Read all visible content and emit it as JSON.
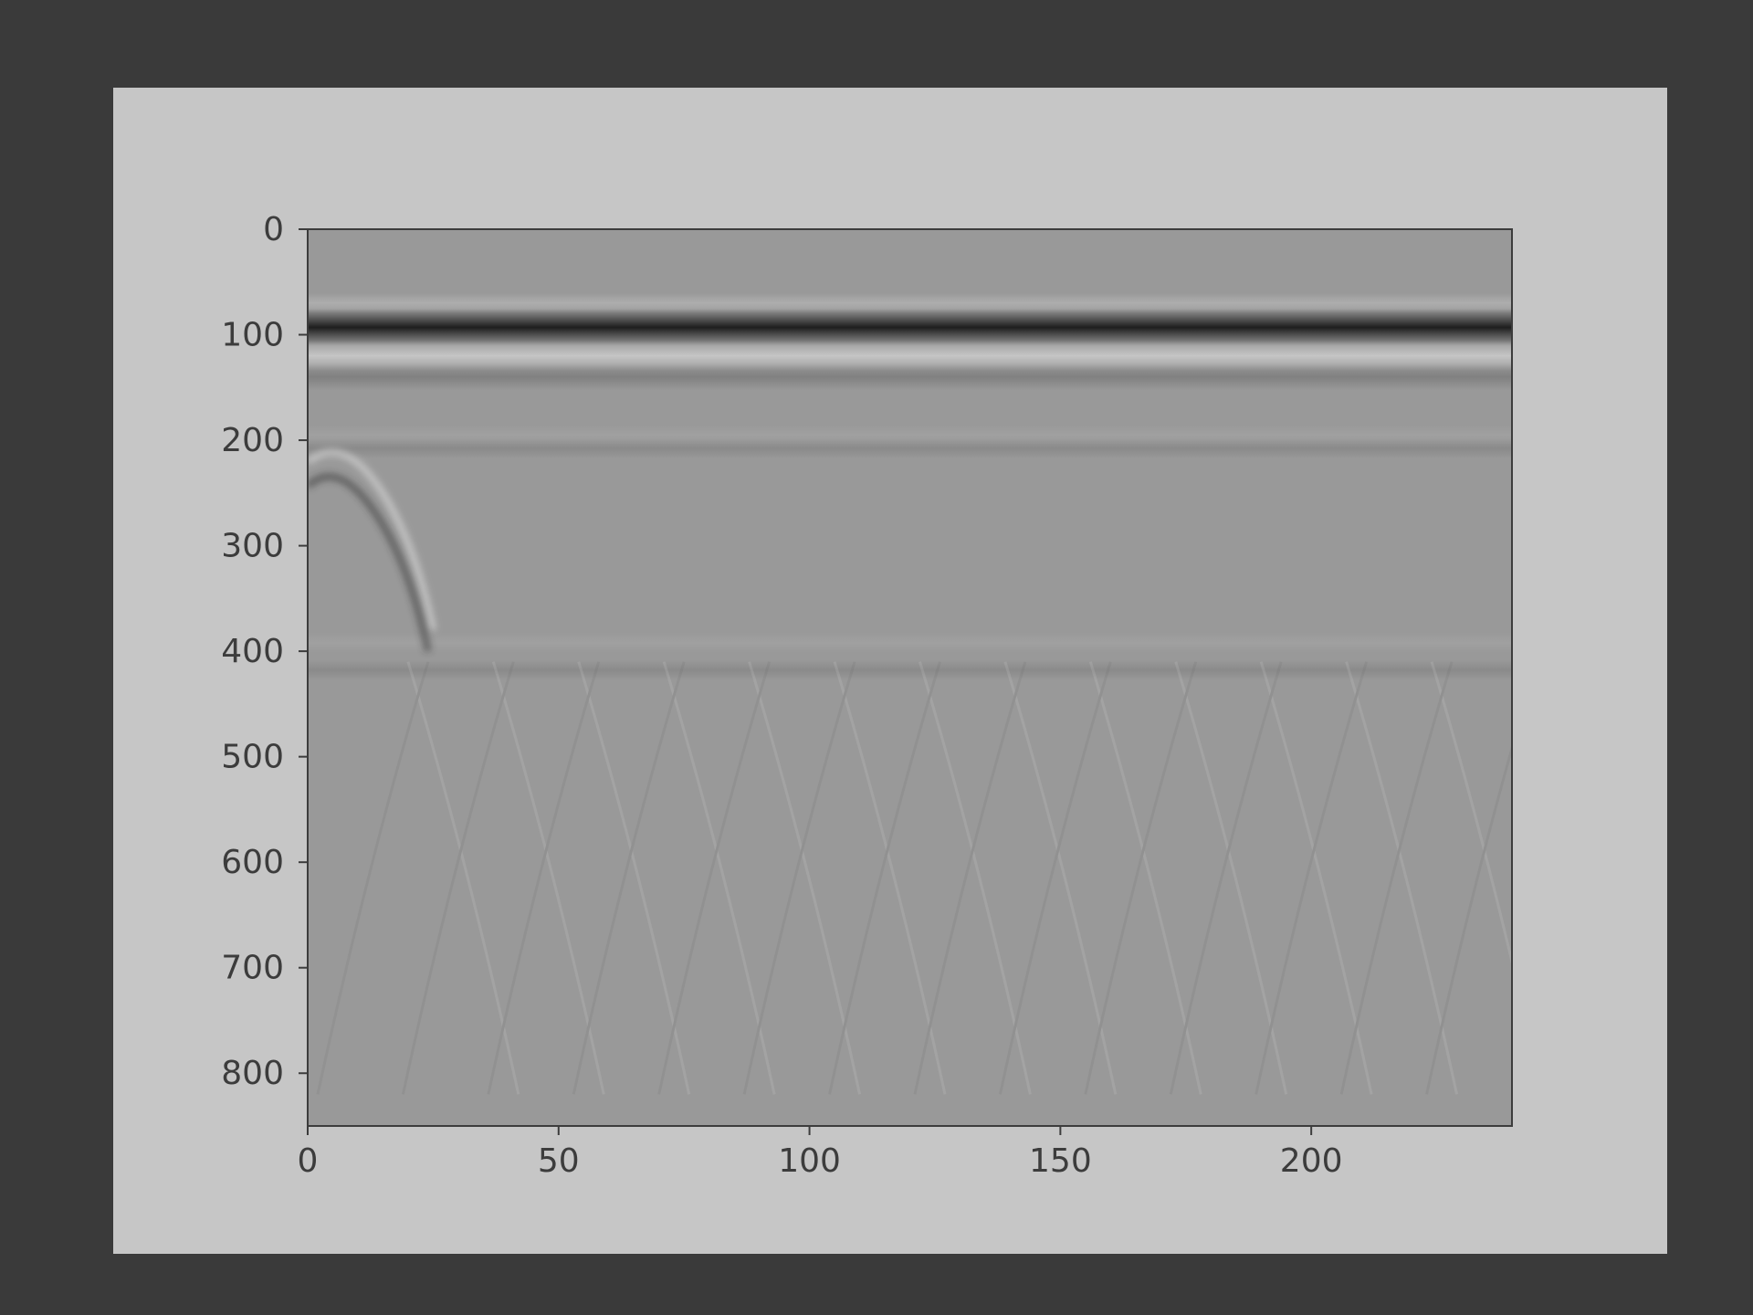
{
  "colors": {
    "screen_background": "#3a3a3a",
    "figure_background": "#c6c6c6",
    "axes_color": "#3c3c3c",
    "image_base_gray": "#999999"
  },
  "chart_data": {
    "type": "heatmap",
    "title": "",
    "xlabel": "",
    "ylabel": "",
    "colormap": "gray",
    "xlim": [
      0,
      240
    ],
    "ylim": [
      850,
      0
    ],
    "y_inverted": true,
    "grid": false,
    "x_ticks": [
      0,
      50,
      100,
      150,
      200
    ],
    "y_ticks": [
      0,
      100,
      200,
      300,
      400,
      500,
      600,
      700,
      800
    ],
    "x_tick_labels": [
      "0",
      "50",
      "100",
      "150",
      "200"
    ],
    "y_tick_labels": [
      "0",
      "100",
      "200",
      "300",
      "400",
      "500",
      "600",
      "700",
      "800"
    ],
    "horizontal_bands": [
      {
        "y_center": 70,
        "y_half_width": 6,
        "tone": "light",
        "intensity": 0.35
      },
      {
        "y_center": 93,
        "y_half_width": 11,
        "tone": "dark",
        "intensity": 1.0
      },
      {
        "y_center": 120,
        "y_half_width": 9,
        "tone": "light",
        "intensity": 0.75
      },
      {
        "y_center": 140,
        "y_half_width": 8,
        "tone": "dark",
        "intensity": 0.2
      },
      {
        "y_center": 195,
        "y_half_width": 6,
        "tone": "light",
        "intensity": 0.12
      },
      {
        "y_center": 208,
        "y_half_width": 6,
        "tone": "dark",
        "intensity": 0.12
      },
      {
        "y_center": 392,
        "y_half_width": 6,
        "tone": "light",
        "intensity": 0.12
      },
      {
        "y_center": 418,
        "y_half_width": 6,
        "tone": "dark",
        "intensity": 0.12
      }
    ],
    "hyperbolas": [
      {
        "apex_x": 5,
        "apex_y": 205,
        "tail_x": 25,
        "tail_y": 380,
        "tone": "light",
        "intensity": 0.6
      },
      {
        "apex_x": 4,
        "apex_y": 228,
        "tail_x": 24,
        "tail_y": 400,
        "tone": "dark",
        "intensity": 0.55
      }
    ]
  }
}
